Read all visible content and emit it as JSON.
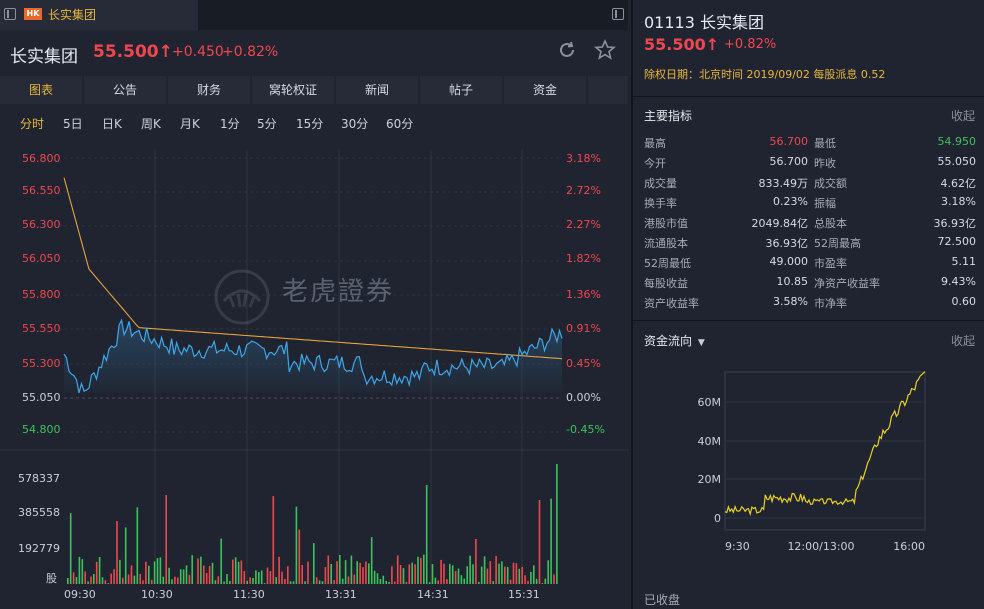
{
  "tab": {
    "badge": "HK",
    "title": "长实集团"
  },
  "header": {
    "name": "长实集团",
    "price": "55.500↑",
    "change": "+0.450",
    "change_pct": "+0.82%"
  },
  "nav": [
    "图表",
    "公告",
    "财务",
    "窝轮权证",
    "新闻",
    "帖子",
    "资金"
  ],
  "periods": [
    "分时",
    "5日",
    "日K",
    "周K",
    "月K",
    "1分",
    "5分",
    "15分",
    "30分",
    "60分"
  ],
  "chart_data": {
    "type": "line",
    "price_axis": [
      "56.800",
      "56.550",
      "56.300",
      "56.050",
      "55.800",
      "55.550",
      "55.300",
      "55.050",
      "54.800"
    ],
    "pct_axis": [
      "3.18%",
      "2.72%",
      "2.27%",
      "1.82%",
      "1.36%",
      "0.91%",
      "0.45%",
      "0.00%",
      "-0.45%"
    ],
    "volume_axis": [
      "578337",
      "385558",
      "192779",
      "股"
    ],
    "time_axis": [
      "09:30",
      "10:30",
      "11:30",
      "13:31",
      "14:31",
      "15:31"
    ],
    "watermark": "老虎證券",
    "prev_close": 55.05,
    "ylim": [
      54.7,
      56.9
    ],
    "colors": {
      "price_line": "#3ea6e8",
      "avg_line": "#e8a23c",
      "up": "#f0474e",
      "down": "#3cc25c"
    }
  },
  "right": {
    "title": "01113 长实集团",
    "price": "55.500↑",
    "pct": "+0.82%",
    "dividend": "除权日期：北京时间 2019/09/02 每股派息 0.52",
    "indicators_title": "主要指标",
    "collapse": "收起",
    "indicators": [
      [
        "最高",
        "56.700",
        "最低",
        "54.950"
      ],
      [
        "今开",
        "56.700",
        "昨收",
        "55.050"
      ],
      [
        "成交量",
        "833.49万",
        "成交额",
        "4.62亿"
      ],
      [
        "换手率",
        "0.23%",
        "振幅",
        "3.18%"
      ],
      [
        "港股市值",
        "2049.84亿",
        "总股本",
        "36.93亿"
      ],
      [
        "流通股本",
        "36.93亿",
        "52周最高",
        "72.500"
      ],
      [
        "52周最低",
        "49.000",
        "市盈率",
        "5.11"
      ],
      [
        "每股收益",
        "10.85",
        "净资产收益率",
        "9.43%"
      ],
      [
        "资产收益率",
        "3.58%",
        "市净率",
        "0.60"
      ]
    ],
    "flow_title": "资金流向",
    "flow_collapse": "收起",
    "flow_chart": {
      "type": "line",
      "y_ticks": [
        "60M",
        "40M",
        "20M",
        "0"
      ],
      "x_ticks": [
        "9:30",
        "12:00/13:00",
        "16:00"
      ],
      "color": "#e8d020"
    },
    "status": "已收盘"
  }
}
